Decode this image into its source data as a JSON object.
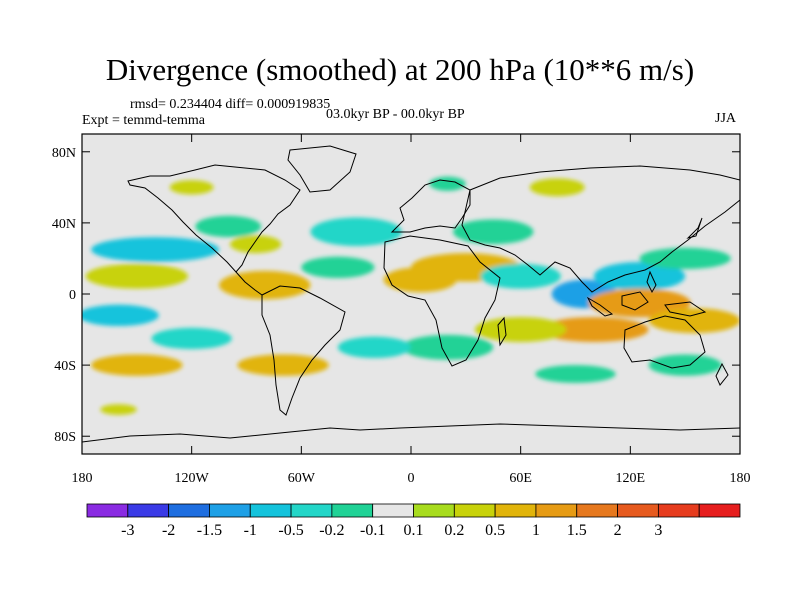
{
  "title": "Divergence (smoothed) at 200 hPa (10**6 m/s)",
  "stats_line": "rmsd= 0.234404 diff= 0.000919835",
  "experiment": "Expt = temmd-temma",
  "period": "03.0kyr BP - 00.0kyr BP",
  "season": "JJA",
  "lat_ticks": [
    "80N",
    "40N",
    "0",
    "40S",
    "80S"
  ],
  "lon_ticks": [
    "180",
    "120W",
    "60W",
    "0",
    "60E",
    "120E",
    "180"
  ],
  "colorbar": {
    "colors": [
      "#8a2be2",
      "#3a3ae6",
      "#1e6ee0",
      "#1ea0e6",
      "#14c3dc",
      "#23d6c8",
      "#20d296",
      "#e6e6e6",
      "#a8dc1e",
      "#c8d20a",
      "#e1b40a",
      "#e69b14",
      "#e6781e",
      "#e65a1e",
      "#e63c1e",
      "#e61e1e"
    ],
    "labels": [
      "-3",
      "-2",
      "-1.5",
      "-1",
      "-0.5",
      "-0.2",
      "-0.1",
      "0.1",
      "0.2",
      "0.5",
      "1",
      "1.5",
      "2",
      "3"
    ]
  },
  "map_data": {
    "lon_range": [
      -180,
      180
    ],
    "lat_range": [
      -90,
      90
    ],
    "background": "#e6e6e6",
    "anomaly_blobs": [
      {
        "lon": -140,
        "lat": 25,
        "rx": 35,
        "ry": 7,
        "c": 4
      },
      {
        "lon": -100,
        "lat": 38,
        "rx": 18,
        "ry": 6,
        "c": 6
      },
      {
        "lon": -30,
        "lat": 35,
        "rx": 25,
        "ry": 8,
        "c": 5
      },
      {
        "lon": -85,
        "lat": 28,
        "rx": 14,
        "ry": 5,
        "c": 9
      },
      {
        "lon": -150,
        "lat": 10,
        "rx": 28,
        "ry": 7,
        "c": 9
      },
      {
        "lon": -80,
        "lat": 5,
        "rx": 25,
        "ry": 8,
        "c": 10
      },
      {
        "lon": -40,
        "lat": 15,
        "rx": 20,
        "ry": 6,
        "c": 6
      },
      {
        "lon": 5,
        "lat": 8,
        "rx": 20,
        "ry": 7,
        "c": 10
      },
      {
        "lon": 30,
        "lat": 15,
        "rx": 30,
        "ry": 8,
        "c": 10
      },
      {
        "lon": 45,
        "lat": 35,
        "rx": 22,
        "ry": 7,
        "c": 6
      },
      {
        "lon": 60,
        "lat": 10,
        "rx": 22,
        "ry": 7,
        "c": 5
      },
      {
        "lon": 95,
        "lat": 0,
        "rx": 18,
        "ry": 8,
        "c": 3
      },
      {
        "lon": 125,
        "lat": 10,
        "rx": 25,
        "ry": 8,
        "c": 4
      },
      {
        "lon": 150,
        "lat": 20,
        "rx": 25,
        "ry": 6,
        "c": 6
      },
      {
        "lon": 125,
        "lat": -5,
        "rx": 28,
        "ry": 8,
        "c": 11
      },
      {
        "lon": 100,
        "lat": -20,
        "rx": 30,
        "ry": 7,
        "c": 11
      },
      {
        "lon": 155,
        "lat": -15,
        "rx": 25,
        "ry": 7,
        "c": 10
      },
      {
        "lon": 60,
        "lat": -20,
        "rx": 25,
        "ry": 7,
        "c": 9
      },
      {
        "lon": 20,
        "lat": -30,
        "rx": 25,
        "ry": 7,
        "c": 6
      },
      {
        "lon": -20,
        "lat": -30,
        "rx": 20,
        "ry": 6,
        "c": 5
      },
      {
        "lon": -160,
        "lat": -12,
        "rx": 22,
        "ry": 6,
        "c": 4
      },
      {
        "lon": -120,
        "lat": -25,
        "rx": 22,
        "ry": 6,
        "c": 5
      },
      {
        "lon": -70,
        "lat": -40,
        "rx": 25,
        "ry": 6,
        "c": 10
      },
      {
        "lon": -150,
        "lat": -40,
        "rx": 25,
        "ry": 6,
        "c": 10
      },
      {
        "lon": 150,
        "lat": -40,
        "rx": 20,
        "ry": 6,
        "c": 6
      },
      {
        "lon": 90,
        "lat": -45,
        "rx": 22,
        "ry": 5,
        "c": 6
      },
      {
        "lon": -160,
        "lat": -65,
        "rx": 10,
        "ry": 3,
        "c": 9
      },
      {
        "lon": 80,
        "lat": 60,
        "rx": 15,
        "ry": 5,
        "c": 9
      },
      {
        "lon": 20,
        "lat": 62,
        "rx": 10,
        "ry": 4,
        "c": 6
      },
      {
        "lon": -120,
        "lat": 60,
        "rx": 12,
        "ry": 4,
        "c": 9
      }
    ]
  }
}
